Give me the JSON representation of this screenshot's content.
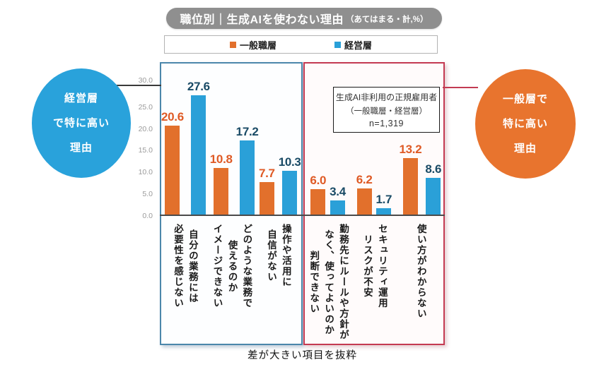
{
  "header": {
    "title": "職位別｜生成AIを使わない理由",
    "title_suffix": "（あてはまる・計,%）"
  },
  "legend": {
    "items": [
      {
        "label": "一般職層",
        "color": "#E2702C"
      },
      {
        "label": "経営層",
        "color": "#2AA0D8"
      }
    ]
  },
  "annotations": {
    "left_circle": {
      "text": "経営層\nで特に高い\n理由",
      "color": "#29A2DB"
    },
    "right_circle": {
      "text": "一般層で\n特に高い\n理由",
      "color": "#E8742E"
    },
    "note_box": {
      "line1": "生成AI非利用の正規雇用者",
      "line2": "（一般職層・経営層）",
      "line3": "n=1,319"
    },
    "caption": "差が大きい項目を抜粋"
  },
  "chart_data": {
    "type": "bar",
    "title": "職位別｜生成AIを使わない理由（あてはまる・計,%）",
    "unit": "%",
    "ylim": [
      0,
      30
    ],
    "yticks": [
      "30.0",
      "25.0",
      "20.0",
      "15.0",
      "10.0",
      "5.0",
      "0.0"
    ],
    "grid": false,
    "legend_position": "top",
    "series_names": [
      "一般職層",
      "経営層"
    ],
    "series_colors": [
      "#E2702C",
      "#2AA0D8"
    ],
    "panel_border_colors": [
      "#4B87AB",
      "#C43A52"
    ],
    "panels": [
      {
        "panel_label": "経営層で特に高い理由",
        "groups": [
          {
            "category": "自分の業務には\n必要性を感じない",
            "general": 20.6,
            "general_label": "20.6",
            "management": 27.6,
            "management_label": "27.6"
          },
          {
            "category": "どのような業務で\n使えるのか\nイメージできない",
            "general": 10.8,
            "general_label": "10.8",
            "management": 17.2,
            "management_label": "17.2"
          },
          {
            "category": "操作や活用に\n自信がない",
            "general": 7.7,
            "general_label": "7.7",
            "management": 10.3,
            "management_label": "10.3"
          }
        ]
      },
      {
        "panel_label": "一般層で特に高い理由",
        "groups": [
          {
            "category": "勤務先にルールや方針が\nなく、使ってよいのか\n判断できない",
            "general": 6.0,
            "general_label": "6.0",
            "management": 3.4,
            "management_label": "3.4"
          },
          {
            "category": "セキュリティ運用\nリスクが不安",
            "general": 6.2,
            "general_label": "6.2",
            "management": 1.7,
            "management_label": "1.7"
          },
          {
            "category": "使い方がわからない",
            "general": 13.2,
            "general_label": "13.2",
            "management": 8.6,
            "management_label": "8.6"
          }
        ]
      }
    ]
  }
}
